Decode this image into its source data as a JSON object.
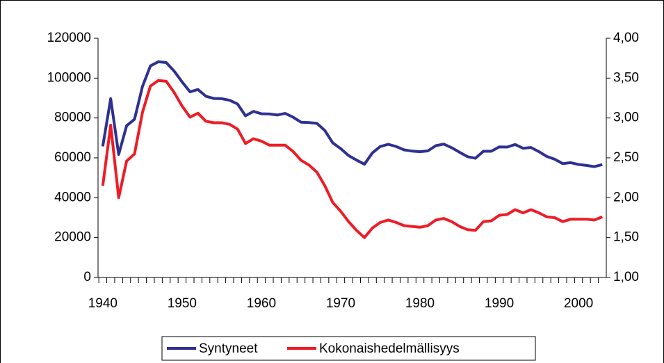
{
  "chart_data": {
    "type": "line",
    "x": [
      1940,
      1941,
      1942,
      1943,
      1944,
      1945,
      1946,
      1947,
      1948,
      1949,
      1950,
      1951,
      1952,
      1953,
      1954,
      1955,
      1956,
      1957,
      1958,
      1959,
      1960,
      1961,
      1962,
      1963,
      1964,
      1965,
      1966,
      1967,
      1968,
      1969,
      1970,
      1971,
      1972,
      1973,
      1974,
      1975,
      1976,
      1977,
      1978,
      1979,
      1980,
      1981,
      1982,
      1983,
      1984,
      1985,
      1986,
      1987,
      1988,
      1989,
      1990,
      1991,
      1992,
      1993,
      1994,
      1995,
      1996,
      1997,
      1998,
      1999,
      2000,
      2001,
      2002,
      2003
    ],
    "series": [
      {
        "name": "Syntyneet",
        "color": "#2e3192",
        "values": [
          65800,
          89700,
          61700,
          76100,
          79400,
          95800,
          106100,
          108200,
          107800,
          103500,
          98100,
          93100,
          94300,
          90900,
          89800,
          89700,
          88900,
          87000,
          81100,
          83300,
          82100,
          82000,
          81500,
          82300,
          80400,
          77900,
          77700,
          77300,
          73700,
          67500,
          64600,
          61100,
          58900,
          56800,
          62500,
          65700,
          66800,
          65700,
          64000,
          63400,
          63100,
          63500,
          66100,
          66900,
          65100,
          62800,
          60600,
          59800,
          63300,
          63300,
          65500,
          65400,
          66700,
          64800,
          65200,
          63100,
          60700,
          59300,
          57100,
          57600,
          56700,
          56200,
          55600,
          56600
        ]
      },
      {
        "name": "Kokonaishedelmällisyys",
        "color": "#ee1c25",
        "axis": "y2",
        "values": [
          2.15,
          2.91,
          2.0,
          2.46,
          2.55,
          3.07,
          3.4,
          3.47,
          3.46,
          3.32,
          3.15,
          3.01,
          3.06,
          2.96,
          2.94,
          2.94,
          2.92,
          2.86,
          2.68,
          2.74,
          2.71,
          2.66,
          2.66,
          2.66,
          2.58,
          2.47,
          2.41,
          2.32,
          2.15,
          1.94,
          1.83,
          1.7,
          1.59,
          1.5,
          1.62,
          1.69,
          1.72,
          1.69,
          1.65,
          1.64,
          1.63,
          1.65,
          1.72,
          1.74,
          1.7,
          1.64,
          1.6,
          1.59,
          1.7,
          1.71,
          1.78,
          1.79,
          1.85,
          1.81,
          1.85,
          1.81,
          1.76,
          1.75,
          1.7,
          1.73,
          1.73,
          1.73,
          1.72,
          1.76
        ]
      }
    ],
    "xlim": [
      1939.4,
      2003.5
    ],
    "xticks": [
      1940,
      1950,
      1960,
      1970,
      1980,
      1990,
      2000
    ],
    "ylim": [
      0,
      120000
    ],
    "yticks": [
      0,
      20000,
      40000,
      60000,
      80000,
      100000,
      120000
    ],
    "y2lim": [
      1,
      4
    ],
    "y2ticks": [
      {
        "value": 1,
        "label": "1,00"
      },
      {
        "value": 1.5,
        "label": "1,50"
      },
      {
        "value": 2,
        "label": "2,00"
      },
      {
        "value": 2.5,
        "label": "2,50"
      },
      {
        "value": 3,
        "label": "3,00"
      },
      {
        "value": 3.5,
        "label": "3,50"
      },
      {
        "value": 4,
        "label": "4,00"
      }
    ],
    "legend": "bottom"
  }
}
